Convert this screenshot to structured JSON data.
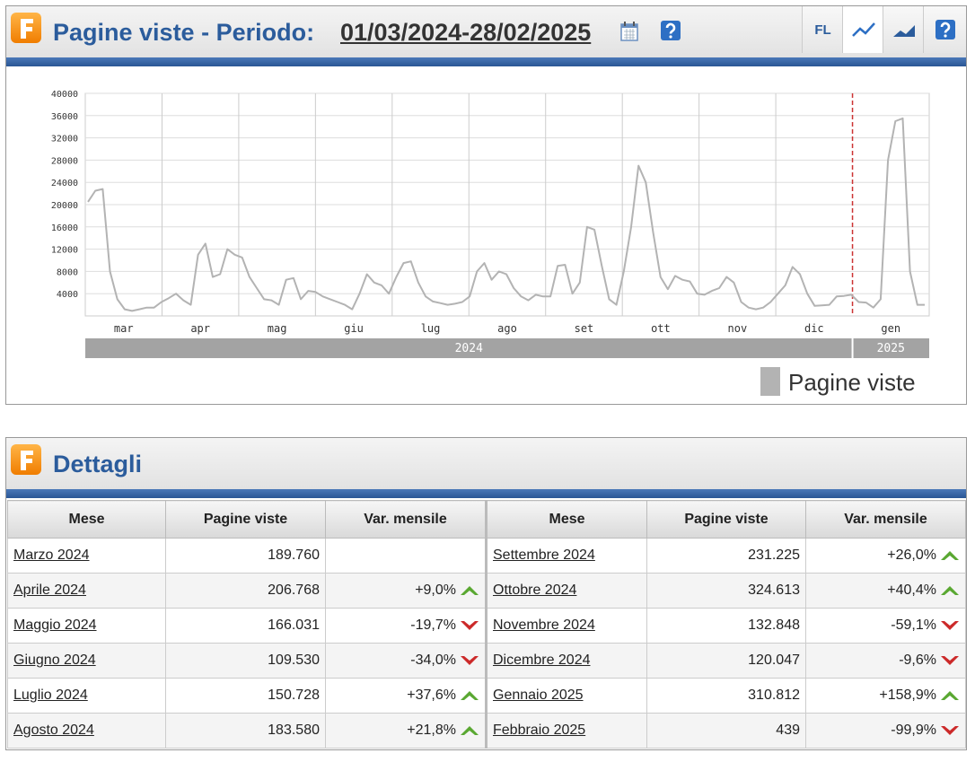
{
  "header": {
    "title": "Pagine viste - Periodo:",
    "period": "01/03/2024-28/02/2025",
    "buttons": [
      "FL"
    ]
  },
  "chart_data": {
    "type": "line",
    "months": [
      "mar",
      "apr",
      "mag",
      "giu",
      "lug",
      "ago",
      "set",
      "ott",
      "nov",
      "dic",
      "gen"
    ],
    "years": [
      "2024",
      "2025"
    ],
    "series": [
      {
        "name": "Pagine viste",
        "color": "#b3b3b3",
        "values": [
          20500,
          22500,
          22800,
          8000,
          3000,
          1200,
          900,
          1200,
          1500,
          1500,
          2500,
          3200,
          4000,
          2800,
          2000,
          11000,
          13000,
          7000,
          7500,
          12000,
          11000,
          10500,
          7000,
          5000,
          3000,
          2800,
          2000,
          6500,
          6800,
          3000,
          4500,
          4300,
          3500,
          3000,
          2500,
          2000,
          1200,
          4000,
          7500,
          6000,
          5500,
          4000,
          7000,
          9500,
          9800,
          6000,
          3500,
          2600,
          2300,
          2000,
          2200,
          2500,
          3500,
          8000,
          9500,
          6500,
          8000,
          7500,
          5000,
          3500,
          2800,
          3800,
          3500,
          3500,
          9000,
          9200,
          4000,
          6000,
          16000,
          15500,
          9000,
          3000,
          2000,
          8000,
          16000,
          27000,
          24000,
          15000,
          7000,
          4800,
          7200,
          6500,
          6200,
          4000,
          3800,
          4500,
          5000,
          7000,
          6000,
          2500,
          1500,
          1200,
          1500,
          2500,
          4000,
          5500,
          8800,
          7500,
          4000,
          1800,
          1900,
          2000,
          3500,
          3600,
          3800,
          2500,
          2400,
          1500,
          3000,
          28000,
          35000,
          35500,
          8000,
          2000,
          2000
        ]
      }
    ],
    "ylim": [
      0,
      40000
    ],
    "yticks": [
      4000,
      8000,
      12000,
      16000,
      20000,
      24000,
      28000,
      32000,
      36000,
      40000
    ],
    "grid": true
  },
  "details": {
    "title": "Dettagli",
    "columns": [
      "Mese",
      "Pagine viste",
      "Var. mensile",
      "Mese",
      "Pagine viste",
      "Var. mensile"
    ],
    "rows": [
      [
        "Marzo 2024",
        "189.760",
        null,
        "Settembre 2024",
        "231.225",
        "+26,0%"
      ],
      [
        "Aprile 2024",
        "206.768",
        "+9,0%",
        "Ottobre 2024",
        "324.613",
        "+40,4%"
      ],
      [
        "Maggio 2024",
        "166.031",
        "-19,7%",
        "Novembre 2024",
        "132.848",
        "-59,1%"
      ],
      [
        "Giugno 2024",
        "109.530",
        "-34,0%",
        "Dicembre 2024",
        "120.047",
        "-9,6%"
      ],
      [
        "Luglio 2024",
        "150.728",
        "+37,6%",
        "Gennaio 2025",
        "310.812",
        "+158,9%"
      ],
      [
        "Agosto 2024",
        "183.580",
        "+21,8%",
        "Febbraio 2025",
        "439",
        "-99,9%"
      ]
    ]
  }
}
